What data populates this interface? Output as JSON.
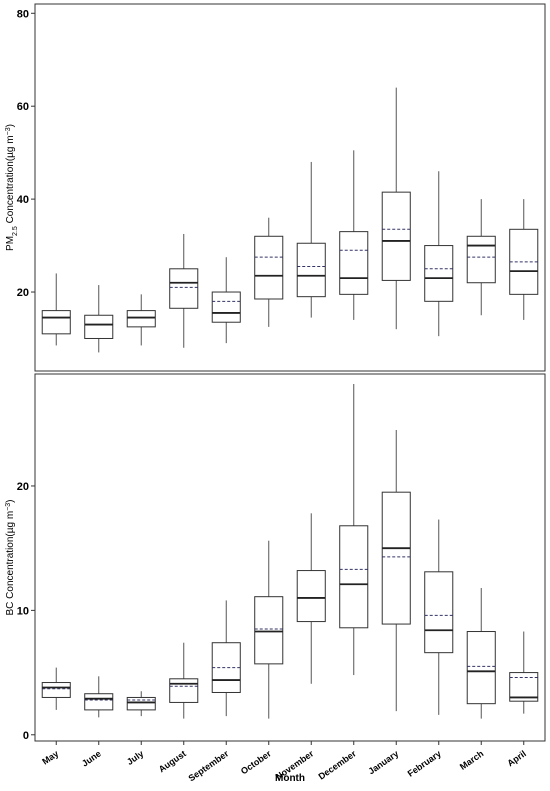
{
  "figure": {
    "xlabel": "Month",
    "months": [
      "May",
      "June",
      "July",
      "August",
      "September",
      "October",
      "November",
      "December",
      "January",
      "February",
      "March",
      "April"
    ]
  },
  "chart_data": [
    {
      "type": "box",
      "id": "pm25",
      "ylabel_prefix": "PM",
      "ylabel_sub": "2.5",
      "ylabel_main": " Concentration(µg m",
      "ylabel_sup": "−3",
      "ylabel_close": ")",
      "ylim": [
        3,
        82
      ],
      "yticks": [
        20,
        40,
        60,
        80
      ],
      "grid": false,
      "categories": [
        "May",
        "June",
        "July",
        "August",
        "September",
        "October",
        "November",
        "December",
        "January",
        "February",
        "March",
        "April"
      ],
      "boxes": [
        {
          "whisker_low": 8.5,
          "q1": 11,
          "median": 14.5,
          "mean": 14.5,
          "q3": 16,
          "whisker_high": 24
        },
        {
          "whisker_low": 7,
          "q1": 10,
          "median": 13,
          "mean": 13,
          "q3": 15,
          "whisker_high": 21.5
        },
        {
          "whisker_low": 8.5,
          "q1": 12.5,
          "median": 14.5,
          "mean": 14.5,
          "q3": 16,
          "whisker_high": 19.5
        },
        {
          "whisker_low": 8,
          "q1": 16.5,
          "median": 22,
          "mean": 21,
          "q3": 25,
          "whisker_high": 32.5
        },
        {
          "whisker_low": 9,
          "q1": 13.5,
          "median": 15.5,
          "mean": 18,
          "q3": 20,
          "whisker_high": 27.5
        },
        {
          "whisker_low": 12.5,
          "q1": 18.5,
          "median": 23.5,
          "mean": 27.5,
          "q3": 32,
          "whisker_high": 36
        },
        {
          "whisker_low": 14.5,
          "q1": 19,
          "median": 23.5,
          "mean": 25.5,
          "q3": 30.5,
          "whisker_high": 48
        },
        {
          "whisker_low": 14,
          "q1": 19.5,
          "median": 23,
          "mean": 29,
          "q3": 33,
          "whisker_high": 50.5
        },
        {
          "whisker_low": 12,
          "q1": 22.5,
          "median": 31,
          "mean": 33.5,
          "q3": 41.5,
          "whisker_high": 64
        },
        {
          "whisker_low": 10.5,
          "q1": 18,
          "median": 23,
          "mean": 25,
          "q3": 30,
          "whisker_high": 46
        },
        {
          "whisker_low": 15,
          "q1": 22,
          "median": 30,
          "mean": 27.5,
          "q3": 32,
          "whisker_high": 40
        },
        {
          "whisker_low": 14,
          "q1": 19.5,
          "median": 24.5,
          "mean": 26.5,
          "q3": 33.5,
          "whisker_high": 40
        }
      ]
    },
    {
      "type": "box",
      "id": "bc",
      "ylabel_prefix": "BC",
      "ylabel_sub": "",
      "ylabel_main": " Concentration(µg m",
      "ylabel_sup": "−3",
      "ylabel_close": ")",
      "ylim": [
        -0.5,
        29
      ],
      "yticks": [
        0,
        10,
        20
      ],
      "grid": false,
      "categories": [
        "May",
        "June",
        "July",
        "August",
        "September",
        "October",
        "November",
        "December",
        "January",
        "February",
        "March",
        "April"
      ],
      "boxes": [
        {
          "whisker_low": 2,
          "q1": 3,
          "median": 3.8,
          "mean": 3.7,
          "q3": 4.2,
          "whisker_high": 5.4
        },
        {
          "whisker_low": 1.4,
          "q1": 2,
          "median": 2.9,
          "mean": 2.8,
          "q3": 3.3,
          "whisker_high": 4.7
        },
        {
          "whisker_low": 1.5,
          "q1": 2,
          "median": 2.6,
          "mean": 2.8,
          "q3": 3,
          "whisker_high": 3.5
        },
        {
          "whisker_low": 1.3,
          "q1": 2.6,
          "median": 4.1,
          "mean": 3.9,
          "q3": 4.5,
          "whisker_high": 7.4
        },
        {
          "whisker_low": 1.5,
          "q1": 3.4,
          "median": 4.4,
          "mean": 5.4,
          "q3": 7.4,
          "whisker_high": 10.8
        },
        {
          "whisker_low": 1.3,
          "q1": 5.7,
          "median": 8.3,
          "mean": 8.5,
          "q3": 11.1,
          "whisker_high": 15.6
        },
        {
          "whisker_low": 4.1,
          "q1": 9.1,
          "median": 11,
          "mean": 11,
          "q3": 13.2,
          "whisker_high": 17.8
        },
        {
          "whisker_low": 4.8,
          "q1": 8.6,
          "median": 12.1,
          "mean": 13.3,
          "q3": 16.8,
          "whisker_high": 28.2
        },
        {
          "whisker_low": 1.9,
          "q1": 8.9,
          "median": 15,
          "mean": 14.3,
          "q3": 19.5,
          "whisker_high": 24.5
        },
        {
          "whisker_low": 1.6,
          "q1": 6.6,
          "median": 8.4,
          "mean": 9.6,
          "q3": 13.1,
          "whisker_high": 17.3
        },
        {
          "whisker_low": 1.3,
          "q1": 2.5,
          "median": 5.1,
          "mean": 5.5,
          "q3": 8.3,
          "whisker_high": 11.8
        },
        {
          "whisker_low": 1.7,
          "q1": 2.7,
          "median": 3,
          "mean": 4.6,
          "q3": 5,
          "whisker_high": 8.3
        }
      ]
    }
  ]
}
